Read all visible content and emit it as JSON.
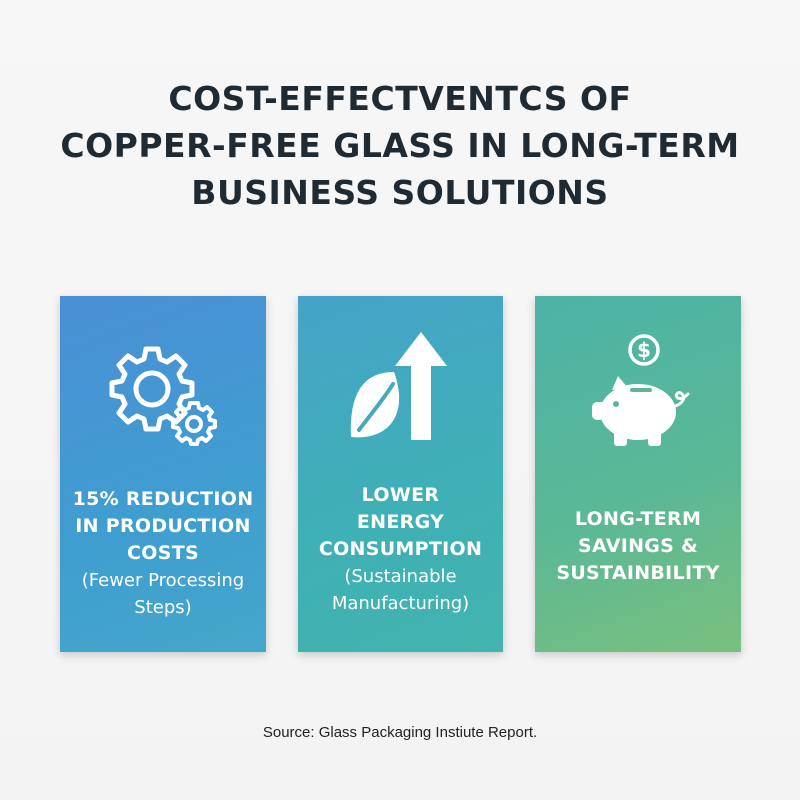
{
  "title": {
    "line1": "COST-EFFECTVENTCS OF",
    "line2": "COPPER-FREE GLASS IN LONG-TERM",
    "line3": "BUSINESS SOLUTIONS"
  },
  "cards": [
    {
      "icon": "gears-icon",
      "bold": [
        "15% REDUCTION",
        "IN PRODUCTION",
        "COSTS"
      ],
      "light": [
        "(Fewer Processing",
        "Steps)"
      ]
    },
    {
      "icon": "leaf-arrow-up-icon",
      "bold": [
        "LOWER",
        "ENERGY",
        "CONSUMPTION"
      ],
      "light": [
        "(Sustainable",
        "Manufacturing)"
      ]
    },
    {
      "icon": "piggy-bank-dollar-icon",
      "dollar": "$",
      "bold": [
        "LONG-TERM",
        "SAVINGS &",
        "SUSTAINBILITY"
      ],
      "light": []
    }
  ],
  "source": "Source: Glass Packaging Instiute Report.",
  "colors": {
    "title": "#1f2a33",
    "card1": "#4a8fd6",
    "card2": "#3fb0b5",
    "card3": "#5ab896",
    "card_text": "#ffffff"
  }
}
